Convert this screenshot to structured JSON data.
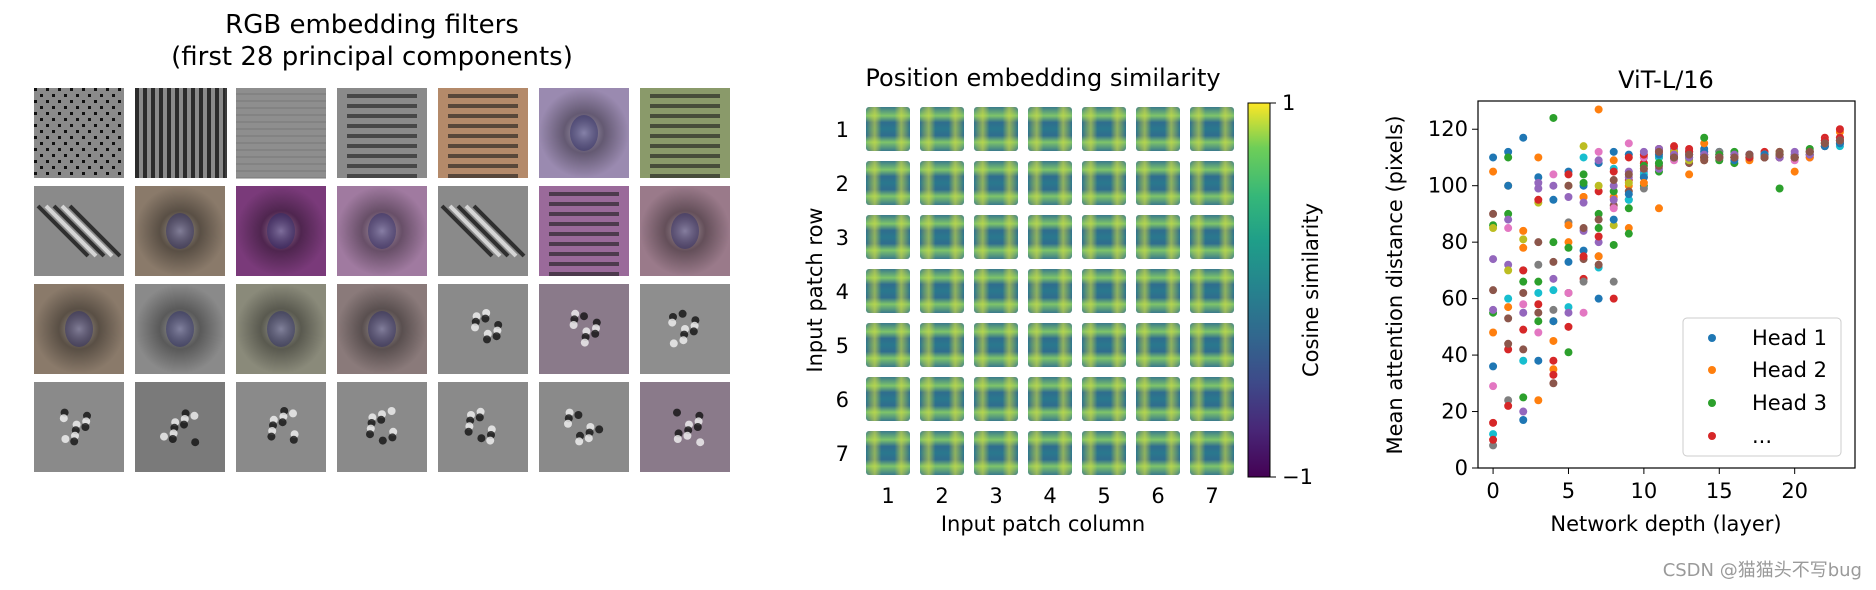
{
  "watermark": "CSDN @猫猫头不写bug",
  "chart_data": [
    {
      "type": "image-grid",
      "title_line1": "RGB embedding filters",
      "title_line2": "(first 28 principal components)",
      "rows": 4,
      "cols": 7,
      "tiles": [
        {
          "pattern": "checker",
          "tint": "#8a8a8a"
        },
        {
          "pattern": "vstripes",
          "tint": "#8a8a8a"
        },
        {
          "pattern": "faint",
          "tint": "#8e8e8e"
        },
        {
          "pattern": "hstripes",
          "tint": "#8a8a8a"
        },
        {
          "pattern": "hstripes",
          "tint": "#b48a6a"
        },
        {
          "pattern": "blob",
          "tint": "#9a8ab0"
        },
        {
          "pattern": "hstripes",
          "tint": "#8a9a6a"
        },
        {
          "pattern": "diag",
          "tint": "#8a8a8a"
        },
        {
          "pattern": "blob",
          "tint": "#8a7a6a"
        },
        {
          "pattern": "blob",
          "tint": "#7a3a7a"
        },
        {
          "pattern": "blob",
          "tint": "#a07aa0"
        },
        {
          "pattern": "diag",
          "tint": "#8a8a8a"
        },
        {
          "pattern": "hstripes",
          "tint": "#9a6a9a"
        },
        {
          "pattern": "blob",
          "tint": "#9a7a8a"
        },
        {
          "pattern": "blob",
          "tint": "#8a7a6a"
        },
        {
          "pattern": "blob",
          "tint": "#8a8a8a"
        },
        {
          "pattern": "blob",
          "tint": "#8a8a7a"
        },
        {
          "pattern": "blob",
          "tint": "#8a7a7a"
        },
        {
          "pattern": "noise",
          "tint": "#8a8a8a"
        },
        {
          "pattern": "noise",
          "tint": "#8a7a8a"
        },
        {
          "pattern": "noise",
          "tint": "#8e8e8e"
        },
        {
          "pattern": "noise",
          "tint": "#8a8a8a"
        },
        {
          "pattern": "noise",
          "tint": "#7a7a7a"
        },
        {
          "pattern": "noise",
          "tint": "#8a8a8a"
        },
        {
          "pattern": "noise",
          "tint": "#8a8a8a"
        },
        {
          "pattern": "noise",
          "tint": "#8a8a8a"
        },
        {
          "pattern": "noise",
          "tint": "#8a8a8a"
        },
        {
          "pattern": "noise",
          "tint": "#8a7a8a"
        }
      ]
    },
    {
      "type": "heatmap",
      "title": "Position embedding similarity",
      "xlabel": "Input patch column",
      "ylabel": "Input patch row",
      "row_labels": [
        "1",
        "2",
        "3",
        "4",
        "5",
        "6",
        "7"
      ],
      "col_labels": [
        "1",
        "2",
        "3",
        "4",
        "5",
        "6",
        "7"
      ],
      "colorbar": {
        "label": "Cosine similarity",
        "min": -1,
        "max": 1,
        "min_label": "−1",
        "max_label": "1"
      },
      "colormap": "viridis"
    },
    {
      "type": "scatter",
      "title": "ViT-L/16",
      "xlabel": "Network depth (layer)",
      "ylabel": "Mean attention distance (pixels)",
      "xlim": [
        -1,
        24
      ],
      "ylim": [
        0,
        130
      ],
      "xticks": [
        0,
        5,
        10,
        15,
        20
      ],
      "yticks": [
        0,
        20,
        40,
        60,
        80,
        100,
        120
      ],
      "legend_position": "lower-right",
      "legend": [
        {
          "label": "Head 1",
          "color": "#1f77b4"
        },
        {
          "label": "Head 2",
          "color": "#ff7f0e"
        },
        {
          "label": "Head 3",
          "color": "#2ca02c"
        },
        {
          "label": "...",
          "color": "#d62728"
        }
      ],
      "palette": [
        "#1f77b4",
        "#ff7f0e",
        "#2ca02c",
        "#d62728",
        "#9467bd",
        "#8c564b",
        "#e377c2",
        "#7f7f7f",
        "#bcbd22",
        "#17becf"
      ],
      "heads": [
        {
          "values": [
            110,
            112,
            117,
            103,
            95,
            105,
            100,
            108,
            112,
            111,
            110,
            113,
            110,
            112,
            113,
            112,
            110,
            111,
            111,
            110,
            111,
            112,
            114,
            116
          ]
        },
        {
          "values": [
            105,
            100,
            78,
            110,
            45,
            80,
            96,
            127,
            96,
            100,
            108,
            110,
            111,
            112,
            109,
            110,
            110,
            111,
            111,
            112,
            105,
            110,
            116,
            119
          ]
        },
        {
          "values": [
            86,
            90,
            25,
            66,
            80,
            41,
            104,
            90,
            98,
            92,
            100,
            105,
            110,
            111,
            110,
            109,
            108,
            110,
            110,
            99,
            110,
            112,
            116,
            117
          ]
        },
        {
          "values": [
            16,
            42,
            49,
            58,
            38,
            50,
            67,
            98,
            60,
            102,
            108,
            112,
            112,
            113,
            111,
            111,
            111,
            110,
            112,
            111,
            110,
            112,
            117,
            120
          ]
        },
        {
          "values": [
            74,
            72,
            55,
            99,
            100,
            96,
            84,
            80,
            100,
            103,
            105,
            106,
            113,
            112,
            110,
            111,
            110,
            111,
            111,
            110,
            111,
            110,
            114,
            115
          ]
        },
        {
          "values": [
            63,
            53,
            42,
            55,
            30,
            62,
            74,
            88,
            93,
            98,
            103,
            107,
            110,
            108,
            109,
            110,
            110,
            110,
            110,
            112,
            110,
            111,
            114,
            116
          ]
        },
        {
          "values": [
            29,
            85,
            58,
            48,
            104,
            62,
            55,
            112,
            92,
            115,
            110,
            112,
            109,
            111,
            112,
            110,
            111,
            111,
            111,
            110,
            109,
            110,
            116,
            117
          ]
        },
        {
          "values": [
            8,
            24,
            70,
            72,
            56,
            87,
            66,
            75,
            66,
            95,
            99,
            108,
            110,
            111,
            111,
            112,
            110,
            110,
            111,
            111,
            110,
            111,
            114,
            115
          ]
        },
        {
          "values": [
            85,
            70,
            81,
            94,
            52,
            100,
            114,
            100,
            86,
            101,
            106,
            110,
            112,
            109,
            110,
            110,
            111,
            110,
            110,
            111,
            110,
            111,
            115,
            116
          ]
        },
        {
          "values": [
            12,
            60,
            38,
            62,
            63,
            57,
            110,
            71,
            106,
            95,
            104,
            110,
            110,
            111,
            111,
            110,
            110,
            110,
            111,
            111,
            110,
            111,
            115,
            114
          ]
        },
        {
          "values": [
            36,
            100,
            17,
            38,
            52,
            73,
            77,
            60,
            88,
            97,
            103,
            111,
            110,
            110,
            112,
            110,
            109,
            111,
            111,
            110,
            110,
            111,
            114,
            115
          ]
        },
        {
          "values": [
            48,
            57,
            84,
            24,
            35,
            86,
            96,
            75,
            109,
            85,
            101,
            92,
            111,
            104,
            115,
            110,
            110,
            109,
            110,
            111,
            110,
            110,
            115,
            116
          ]
        },
        {
          "values": [
            55,
            110,
            66,
            52,
            124,
            78,
            101,
            85,
            79,
            83,
            107,
            108,
            110,
            110,
            117,
            111,
            112,
            110,
            110,
            111,
            110,
            113,
            115,
            116
          ]
        },
        {
          "values": [
            10,
            22,
            70,
            95,
            33,
            104,
            75,
            82,
            105,
            110,
            111,
            113,
            114,
            112,
            110,
            110,
            110,
            110,
            110,
            110,
            110,
            111,
            116,
            117
          ]
        },
        {
          "values": [
            56,
            88,
            20,
            101,
            67,
            55,
            94,
            109,
            95,
            105,
            112,
            113,
            111,
            110,
            111,
            110,
            111,
            111,
            110,
            110,
            112,
            111,
            115,
            116
          ]
        },
        {
          "values": [
            90,
            44,
            62,
            80,
            73,
            100,
            85,
            72,
            102,
            104,
            106,
            112,
            110,
            111,
            110,
            110,
            110,
            111,
            110,
            111,
            110,
            112,
            115,
            116
          ]
        }
      ]
    }
  ]
}
